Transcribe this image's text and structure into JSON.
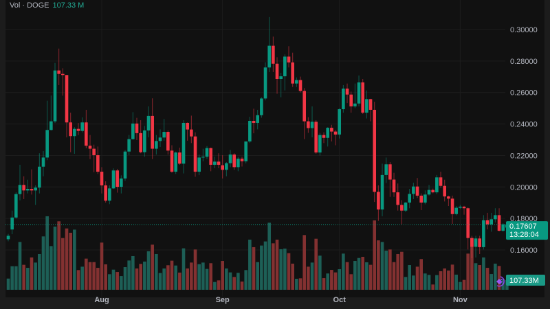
{
  "legend": {
    "label": "Vol · DOGE",
    "value": "107.33 M"
  },
  "colors": {
    "up": "#089981",
    "down": "#f23645",
    "up_volume": "#1d5f56",
    "down_volume": "#833131",
    "background": "#111111",
    "accent_icon": "#8e44ec"
  },
  "icons": {
    "corner_icon": "purple-lightning-logo-icon"
  },
  "chart_data": {
    "type": "candlestick",
    "title": "",
    "xlabel": "",
    "ylabel": "",
    "ylim": [
      0.15,
      0.31
    ],
    "grid": true,
    "y_ticks": [
      "0.30000",
      "0.28000",
      "0.26000",
      "0.24000",
      "0.22000",
      "0.20000",
      "0.18000",
      "0.16000"
    ],
    "x_ticks": [
      {
        "label": "Aug",
        "date": "08-01"
      },
      {
        "label": "Sep",
        "date": "09-01"
      },
      {
        "label": "Oct",
        "date": "10-01"
      },
      {
        "label": "Nov",
        "date": "11-01"
      }
    ],
    "last_price": "0.17607",
    "countdown": "13:28:04",
    "last_volume_label": "107.33M",
    "volume_unit": "M",
    "columns": [
      "date",
      "open",
      "high",
      "low",
      "close",
      "volume"
    ],
    "candles": [
      [
        "07-08",
        0.1668,
        0.1702,
        0.1655,
        0.169,
        125
      ],
      [
        "07-09",
        0.173,
        0.185,
        0.17,
        0.1806,
        263
      ],
      [
        "07-10",
        0.1806,
        0.1966,
        0.1799,
        0.1955,
        263
      ],
      [
        "07-11",
        0.1955,
        0.2141,
        0.1915,
        0.2013,
        534
      ],
      [
        "07-12",
        0.2013,
        0.2068,
        0.1923,
        0.1978,
        279
      ],
      [
        "07-13",
        0.1978,
        0.2046,
        0.1959,
        0.1988,
        245
      ],
      [
        "07-14",
        0.1988,
        0.2112,
        0.1952,
        0.1978,
        361
      ],
      [
        "07-15",
        0.1978,
        0.201,
        0.1886,
        0.1996,
        304
      ],
      [
        "07-16",
        0.1996,
        0.2214,
        0.1959,
        0.2129,
        399
      ],
      [
        "07-17",
        0.2129,
        0.2228,
        0.2068,
        0.2187,
        596
      ],
      [
        "07-18",
        0.2187,
        0.2548,
        0.217,
        0.2362,
        821
      ],
      [
        "07-19",
        0.2362,
        0.2581,
        0.2359,
        0.2417,
        488
      ],
      [
        "07-20",
        0.2417,
        0.2788,
        0.2406,
        0.274,
        706
      ],
      [
        "07-21",
        0.274,
        0.2879,
        0.2647,
        0.2718,
        765
      ],
      [
        "07-22",
        0.2718,
        0.2754,
        0.258,
        0.2711,
        578
      ],
      [
        "07-23",
        0.2711,
        0.2711,
        0.2315,
        0.241,
        685
      ],
      [
        "07-24",
        0.241,
        0.2472,
        0.2221,
        0.2323,
        637
      ],
      [
        "07-25",
        0.2323,
        0.238,
        0.2211,
        0.2369,
        672
      ],
      [
        "07-26",
        0.2369,
        0.2406,
        0.233,
        0.2356,
        220
      ],
      [
        "07-27",
        0.2356,
        0.2442,
        0.2347,
        0.241,
        258
      ],
      [
        "07-28",
        0.241,
        0.249,
        0.2246,
        0.2262,
        348
      ],
      [
        "07-29",
        0.2262,
        0.233,
        0.2177,
        0.2243,
        309
      ],
      [
        "07-30",
        0.2243,
        0.2269,
        0.2094,
        0.2202,
        309
      ],
      [
        "07-31",
        0.2202,
        0.2257,
        0.2083,
        0.2097,
        245
      ],
      [
        "08-01",
        0.2097,
        0.2126,
        0.1959,
        0.201,
        527
      ],
      [
        "08-02",
        0.201,
        0.2036,
        0.1901,
        0.1913,
        284
      ],
      [
        "08-03",
        0.1913,
        0.201,
        0.1891,
        0.1991,
        174
      ],
      [
        "08-04",
        0.1991,
        0.2118,
        0.1988,
        0.2105,
        225
      ],
      [
        "08-05",
        0.2105,
        0.2115,
        0.1964,
        0.2001,
        199
      ],
      [
        "08-06",
        0.2001,
        0.2074,
        0.1959,
        0.2054,
        153
      ],
      [
        "08-07",
        0.2054,
        0.2234,
        0.2039,
        0.2225,
        253
      ],
      [
        "08-08",
        0.2225,
        0.233,
        0.2202,
        0.2304,
        327
      ],
      [
        "08-09",
        0.2304,
        0.2475,
        0.23,
        0.2403,
        376
      ],
      [
        "08-10",
        0.2403,
        0.2439,
        0.2298,
        0.2342,
        238
      ],
      [
        "08-11",
        0.2342,
        0.2424,
        0.2214,
        0.2221,
        289
      ],
      [
        "08-12",
        0.2221,
        0.2388,
        0.2192,
        0.2359,
        315
      ],
      [
        "08-13",
        0.2359,
        0.2512,
        0.2315,
        0.2451,
        430
      ],
      [
        "08-14",
        0.2451,
        0.2563,
        0.2177,
        0.2243,
        504
      ],
      [
        "08-15",
        0.2243,
        0.233,
        0.2206,
        0.2292,
        399
      ],
      [
        "08-16",
        0.2292,
        0.2366,
        0.2254,
        0.2314,
        187
      ],
      [
        "08-17",
        0.2314,
        0.2432,
        0.2294,
        0.235,
        238
      ],
      [
        "08-18",
        0.235,
        0.2359,
        0.2206,
        0.2231,
        274
      ],
      [
        "08-19",
        0.2231,
        0.2265,
        0.209,
        0.2097,
        325
      ],
      [
        "08-20",
        0.2097,
        0.2225,
        0.2083,
        0.2219,
        271
      ],
      [
        "08-21",
        0.2219,
        0.225,
        0.2141,
        0.2148,
        192
      ],
      [
        "08-22",
        0.2148,
        0.2424,
        0.2086,
        0.2407,
        463
      ],
      [
        "08-23",
        0.2407,
        0.241,
        0.2294,
        0.2365,
        238
      ],
      [
        "08-24",
        0.2365,
        0.2453,
        0.2279,
        0.2321,
        304
      ],
      [
        "08-25",
        0.2321,
        0.2347,
        0.2065,
        0.2097,
        450
      ],
      [
        "08-26",
        0.2097,
        0.2206,
        0.2075,
        0.2187,
        286
      ],
      [
        "08-27",
        0.2187,
        0.2243,
        0.2163,
        0.2192,
        304
      ],
      [
        "08-28",
        0.2192,
        0.226,
        0.2177,
        0.2247,
        233
      ],
      [
        "08-29",
        0.2247,
        0.225,
        0.21,
        0.2141,
        297
      ],
      [
        "08-30",
        0.2141,
        0.2192,
        0.2119,
        0.2161,
        87
      ],
      [
        "08-31",
        0.2161,
        0.2214,
        0.2119,
        0.2141,
        105
      ],
      [
        "09-01",
        0.2138,
        0.2202,
        0.2054,
        0.2109,
        322
      ],
      [
        "09-02",
        0.2109,
        0.2158,
        0.2068,
        0.2151,
        238
      ],
      [
        "09-03",
        0.2151,
        0.2235,
        0.2126,
        0.2206,
        194
      ],
      [
        "09-04",
        0.2206,
        0.2214,
        0.2109,
        0.2126,
        143
      ],
      [
        "09-05",
        0.2126,
        0.219,
        0.21,
        0.218,
        189
      ],
      [
        "09-06",
        0.218,
        0.2192,
        0.213,
        0.2163,
        92
      ],
      [
        "09-07",
        0.2163,
        0.2289,
        0.215,
        0.2289,
        220
      ],
      [
        "09-08",
        0.2289,
        0.2446,
        0.228,
        0.242,
        560
      ],
      [
        "09-09",
        0.242,
        0.2497,
        0.2341,
        0.2407,
        476
      ],
      [
        "09-10",
        0.2407,
        0.249,
        0.2366,
        0.2456,
        309
      ],
      [
        "09-11",
        0.2456,
        0.257,
        0.244,
        0.2562,
        494
      ],
      [
        "09-12",
        0.2562,
        0.2792,
        0.255,
        0.2759,
        540
      ],
      [
        "09-13",
        0.2759,
        0.3079,
        0.273,
        0.2897,
        749
      ],
      [
        "09-14",
        0.2897,
        0.2955,
        0.273,
        0.2783,
        519
      ],
      [
        "09-15",
        0.2783,
        0.2824,
        0.2592,
        0.2686,
        560
      ],
      [
        "09-16",
        0.2686,
        0.2725,
        0.257,
        0.2703,
        453
      ],
      [
        "09-17",
        0.2703,
        0.2842,
        0.2613,
        0.2828,
        460
      ],
      [
        "09-18",
        0.2828,
        0.2894,
        0.2759,
        0.2791,
        409
      ],
      [
        "09-19",
        0.2791,
        0.2853,
        0.2635,
        0.2657,
        292
      ],
      [
        "09-20",
        0.2657,
        0.2696,
        0.2635,
        0.2679,
        123
      ],
      [
        "09-21",
        0.2679,
        0.2701,
        0.26,
        0.261,
        128
      ],
      [
        "09-22",
        0.261,
        0.2628,
        0.2304,
        0.2417,
        611
      ],
      [
        "09-23",
        0.2417,
        0.2443,
        0.2344,
        0.2374,
        258
      ],
      [
        "09-24",
        0.2374,
        0.2512,
        0.2315,
        0.2414,
        304
      ],
      [
        "09-25",
        0.2414,
        0.2424,
        0.2211,
        0.2219,
        570
      ],
      [
        "09-26",
        0.2219,
        0.2344,
        0.22,
        0.233,
        381
      ],
      [
        "09-27",
        0.233,
        0.2347,
        0.2279,
        0.2312,
        130
      ],
      [
        "09-28",
        0.2312,
        0.238,
        0.2257,
        0.2376,
        182
      ],
      [
        "09-29",
        0.2376,
        0.2395,
        0.2289,
        0.2352,
        222
      ],
      [
        "09-30",
        0.2352,
        0.2362,
        0.2265,
        0.2333,
        194
      ],
      [
        "10-01",
        0.2333,
        0.25,
        0.2308,
        0.2494,
        230
      ],
      [
        "10-02",
        0.2494,
        0.2647,
        0.2472,
        0.2625,
        404
      ],
      [
        "10-03",
        0.2625,
        0.2657,
        0.2533,
        0.2587,
        309
      ],
      [
        "10-04",
        0.2587,
        0.2606,
        0.2472,
        0.2512,
        174
      ],
      [
        "10-05",
        0.2512,
        0.2657,
        0.2501,
        0.253,
        322
      ],
      [
        "10-06",
        0.253,
        0.2708,
        0.2512,
        0.2664,
        355
      ],
      [
        "10-07",
        0.2664,
        0.2686,
        0.2464,
        0.2472,
        368
      ],
      [
        "10-08",
        0.2472,
        0.2613,
        0.2435,
        0.2558,
        307
      ],
      [
        "10-09",
        0.2558,
        0.256,
        0.2417,
        0.249,
        279
      ],
      [
        "10-10",
        0.249,
        0.2541,
        0.1905,
        0.1969,
        775
      ],
      [
        "10-11",
        0.1969,
        0.201,
        0.1785,
        0.1857,
        552
      ],
      [
        "10-12",
        0.1857,
        0.2148,
        0.1814,
        0.2076,
        534
      ],
      [
        "10-13",
        0.2076,
        0.2187,
        0.2025,
        0.2144,
        437
      ],
      [
        "10-14",
        0.2144,
        0.2158,
        0.1937,
        0.2047,
        450
      ],
      [
        "10-15",
        0.2047,
        0.209,
        0.1937,
        0.1966,
        309
      ],
      [
        "10-16",
        0.1966,
        0.2022,
        0.185,
        0.1886,
        399
      ],
      [
        "10-17",
        0.1886,
        0.1916,
        0.176,
        0.185,
        424
      ],
      [
        "10-18",
        0.185,
        0.1905,
        0.184,
        0.1901,
        143
      ],
      [
        "10-19",
        0.1901,
        0.1988,
        0.1865,
        0.1956,
        276
      ],
      [
        "10-20",
        0.1956,
        0.2027,
        0.1923,
        0.2003,
        159
      ],
      [
        "10-21",
        0.2003,
        0.2057,
        0.193,
        0.1945,
        258
      ],
      [
        "10-22",
        0.1945,
        0.1959,
        0.1853,
        0.1901,
        343
      ],
      [
        "10-23",
        0.1901,
        0.1978,
        0.189,
        0.1952,
        182
      ],
      [
        "10-24",
        0.1952,
        0.2013,
        0.1945,
        0.1981,
        166
      ],
      [
        "10-25",
        0.1981,
        0.199,
        0.196,
        0.1966,
        59
      ],
      [
        "10-26",
        0.1966,
        0.2076,
        0.1955,
        0.2061,
        164
      ],
      [
        "10-27",
        0.2061,
        0.2097,
        0.1995,
        0.2007,
        207
      ],
      [
        "10-28",
        0.2007,
        0.2046,
        0.1908,
        0.194,
        238
      ],
      [
        "10-29",
        0.194,
        0.1945,
        0.1879,
        0.1926,
        215
      ],
      [
        "10-30",
        0.1926,
        0.1945,
        0.1766,
        0.1828,
        281
      ],
      [
        "10-31",
        0.1828,
        0.1879,
        0.182,
        0.1868,
        169
      ],
      [
        "11-01",
        0.1868,
        0.1886,
        0.186,
        0.1875,
        87
      ],
      [
        "11-02",
        0.1875,
        0.188,
        0.1824,
        0.1865,
        110
      ],
      [
        "11-03",
        0.1865,
        0.187,
        0.1603,
        0.1676,
        404
      ],
      [
        "11-04",
        0.1676,
        0.169,
        0.1548,
        0.162,
        578
      ],
      [
        "11-05",
        0.162,
        0.169,
        0.1552,
        0.1673,
        297
      ],
      [
        "11-06",
        0.1673,
        0.169,
        0.1574,
        0.1618,
        276
      ],
      [
        "11-07",
        0.1618,
        0.1821,
        0.1603,
        0.1789,
        361
      ],
      [
        "11-08",
        0.1789,
        0.1836,
        0.1731,
        0.1763,
        245
      ],
      [
        "11-09",
        0.1763,
        0.1836,
        0.1716,
        0.1795,
        176
      ],
      [
        "11-10",
        0.1795,
        0.1865,
        0.1775,
        0.1821,
        292
      ],
      [
        "11-11",
        0.1821,
        0.1865,
        0.1718,
        0.1722,
        266
      ],
      [
        "11-12",
        0.1722,
        0.177,
        0.1715,
        0.1763,
        120
      ],
      [
        "11-13",
        0.1742,
        0.177,
        0.1735,
        0.17607,
        107.33
      ]
    ]
  }
}
